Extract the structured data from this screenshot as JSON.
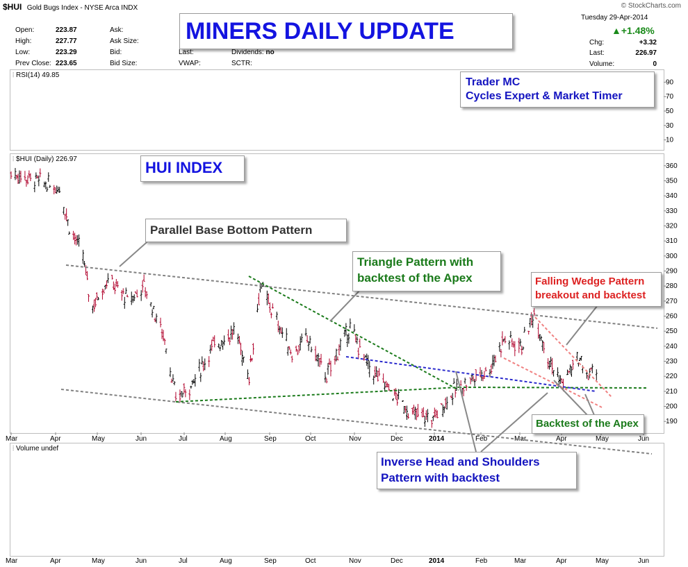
{
  "header": {
    "symbol": "$HUI",
    "description": "Gold Bugs Index - NYSE Arca INDX",
    "watermark": "© StockCharts.com",
    "date": "Tuesday  29-Apr-2014",
    "change_pct": "▲+1.48%",
    "chg_label": "Chg:",
    "chg_value": "+3.32",
    "last_label": "Last:",
    "last_value": "226.97",
    "volume_label": "Volume:",
    "volume_value": "0",
    "stats": [
      {
        "label": "Open:",
        "value": "223.87"
      },
      {
        "label": "High:",
        "value": "227.77"
      },
      {
        "label": "Low:",
        "value": "223.29"
      },
      {
        "label": "Prev Close:",
        "value": "223.65"
      }
    ],
    "stats2": [
      "Ask:",
      "Ask Size:",
      "Bid:",
      "Bid Size:"
    ],
    "stats3": [
      "Last:",
      "VWAP:"
    ],
    "stats4": [
      {
        "label": "Dividends:",
        "value": "no"
      },
      {
        "label": "SCTR:",
        "value": ""
      }
    ]
  },
  "colors": {
    "up": "#000000",
    "down": "#b0002a",
    "green": "#1a7a1a",
    "blue": "#2a2acc",
    "red": "#dd2222",
    "gray": "#808080"
  },
  "chart_data": [
    {
      "type": "line",
      "panel": "RSI",
      "title": "RSI(14) 49.85",
      "ylim": [
        0,
        100
      ],
      "yticks": [
        10,
        30,
        50,
        70,
        90
      ],
      "values": []
    },
    {
      "type": "ohlc",
      "panel": "price",
      "title": "$HUI (Daily) 226.97",
      "ylim": [
        185,
        365
      ],
      "yticks": [
        190,
        200,
        210,
        220,
        230,
        240,
        250,
        260,
        270,
        280,
        290,
        300,
        310,
        320,
        330,
        340,
        350,
        360
      ],
      "x_labels": [
        "Mar",
        "Apr",
        "May",
        "Jun",
        "Jul",
        "Aug",
        "Sep",
        "Oct",
        "Nov",
        "Dec",
        "2014",
        "Feb",
        "Mar",
        "Apr",
        "May",
        "Jun"
      ],
      "x_label_bold_index": 10,
      "approx_closes": [
        {
          "date": "2013-03-01",
          "close": 355
        },
        {
          "date": "2013-03-20",
          "close": 350
        },
        {
          "date": "2013-04-05",
          "close": 345
        },
        {
          "date": "2013-04-12",
          "close": 320
        },
        {
          "date": "2013-04-22",
          "close": 300
        },
        {
          "date": "2013-04-28",
          "close": 265
        },
        {
          "date": "2013-05-10",
          "close": 285
        },
        {
          "date": "2013-05-25",
          "close": 270
        },
        {
          "date": "2013-06-05",
          "close": 280
        },
        {
          "date": "2013-06-20",
          "close": 245
        },
        {
          "date": "2013-06-28",
          "close": 205
        },
        {
          "date": "2013-07-10",
          "close": 215
        },
        {
          "date": "2013-07-25",
          "close": 240
        },
        {
          "date": "2013-08-10",
          "close": 250
        },
        {
          "date": "2013-08-20",
          "close": 220
        },
        {
          "date": "2013-08-28",
          "close": 280
        },
        {
          "date": "2013-09-10",
          "close": 255
        },
        {
          "date": "2013-09-20",
          "close": 235
        },
        {
          "date": "2013-10-01",
          "close": 245
        },
        {
          "date": "2013-10-15",
          "close": 220
        },
        {
          "date": "2013-10-25",
          "close": 240
        },
        {
          "date": "2013-11-01",
          "close": 252
        },
        {
          "date": "2013-11-15",
          "close": 225
        },
        {
          "date": "2013-12-01",
          "close": 210
        },
        {
          "date": "2013-12-15",
          "close": 195
        },
        {
          "date": "2013-12-31",
          "close": 192
        },
        {
          "date": "2014-01-15",
          "close": 210
        },
        {
          "date": "2014-01-31",
          "close": 220
        },
        {
          "date": "2014-02-10",
          "close": 225
        },
        {
          "date": "2014-02-20",
          "close": 245
        },
        {
          "date": "2014-03-05",
          "close": 240
        },
        {
          "date": "2014-03-14",
          "close": 262
        },
        {
          "date": "2014-03-25",
          "close": 230
        },
        {
          "date": "2014-04-03",
          "close": 215
        },
        {
          "date": "2014-04-15",
          "close": 232
        },
        {
          "date": "2014-04-22",
          "close": 220
        },
        {
          "date": "2014-04-29",
          "close": 226.97
        }
      ]
    },
    {
      "type": "bar",
      "panel": "volume",
      "title": "Volume undef",
      "values": []
    }
  ],
  "annotations": {
    "banner": "MINERS DAILY UPDATE",
    "trader_line1": "Trader MC",
    "trader_line2": "Cycles Expert & Market Timer",
    "hui_index": "HUI INDEX",
    "parallel_base": "Parallel Base Bottom Pattern",
    "triangle_line1": "Triangle Pattern with",
    "triangle_line2": "backtest of the Apex",
    "wedge_line1": "Falling Wedge Pattern",
    "wedge_line2": "breakout and backtest",
    "backtest_apex": "Backtest of the Apex",
    "ihs_line1": "Inverse Head and Shoulders",
    "ihs_line2": "Pattern with backtest"
  }
}
